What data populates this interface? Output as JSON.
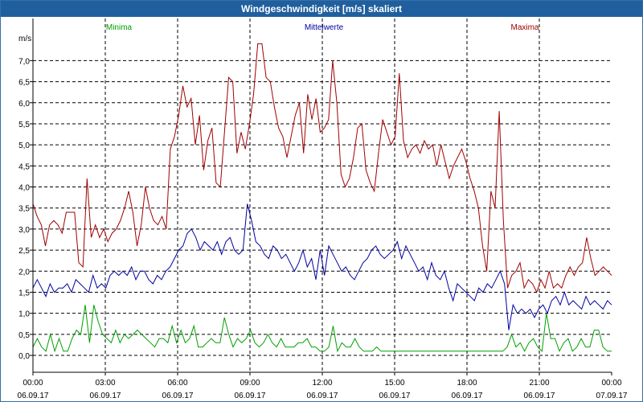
{
  "window": {
    "title": "Windgeschwindigkeit [m/s] skaliert"
  },
  "chart_data": {
    "type": "line",
    "title": "Windgeschwindigkeit [m/s] skaliert",
    "ylabel": "m/s",
    "ylim": [
      -0.4,
      8.0
    ],
    "xlim": [
      0,
      24
    ],
    "yticks": [
      "0,0",
      "0,5",
      "1,0",
      "1,5",
      "2,0",
      "2,5",
      "3,0",
      "3,5",
      "4,0",
      "4,5",
      "5,0",
      "5,5",
      "6,0",
      "6,5",
      "7,0"
    ],
    "xticks": [
      {
        "time": "00:00",
        "date": "06.09.17"
      },
      {
        "time": "03:00",
        "date": "06.09.17"
      },
      {
        "time": "06:00",
        "date": "06.09.17"
      },
      {
        "time": "09:00",
        "date": "06.09.17"
      },
      {
        "time": "12:00",
        "date": "06.09.17"
      },
      {
        "time": "15:00",
        "date": "06.09.17"
      },
      {
        "time": "18:00",
        "date": "06.09.17"
      },
      {
        "time": "21:00",
        "date": "06.09.17"
      },
      {
        "time": "00:00",
        "date": "07.09.17"
      }
    ],
    "grid": true,
    "series": [
      {
        "name": "Minima",
        "color": "#00a000",
        "values": [
          0.2,
          0.4,
          0.2,
          0.1,
          0.5,
          0.1,
          0.4,
          0.1,
          0.1,
          0.4,
          0.6,
          0.5,
          1.2,
          0.3,
          1.2,
          0.8,
          0.5,
          0.4,
          0.3,
          0.6,
          0.3,
          0.5,
          0.4,
          0.5,
          0.6,
          0.5,
          0.4,
          0.3,
          0.2,
          0.4,
          0.4,
          0.3,
          0.7,
          0.3,
          0.6,
          0.3,
          0.4,
          0.7,
          0.2,
          0.2,
          0.3,
          0.4,
          0.3,
          0.3,
          0.9,
          0.5,
          0.2,
          0.4,
          0.3,
          0.4,
          0.6,
          0.3,
          0.2,
          0.3,
          0.5,
          0.3,
          0.2,
          0.4,
          0.2,
          0.2,
          0.2,
          0.3,
          0.3,
          0.4,
          0.2,
          0.2,
          0.1,
          0.1,
          0.2,
          0.7,
          0.1,
          0.3,
          0.2,
          0.2,
          0.4,
          0.2,
          0.1,
          0.1,
          0.1,
          0.2,
          0.1,
          0.1,
          0.1,
          0.1,
          0.1,
          0.1,
          0.1,
          0.1,
          0.1,
          0.1,
          0.1,
          0.1,
          0.1,
          0.1,
          0.1,
          0.1,
          0.1,
          0.1,
          0.1,
          0.1,
          0.1,
          0.1,
          0.1,
          0.1,
          0.1,
          0.1,
          0.1,
          0.1,
          0.1,
          0.2,
          0.5,
          0.2,
          0.3,
          0.1,
          0.3,
          0.4,
          0.2,
          0.1,
          1.0,
          0.4,
          0.4,
          0.1,
          0.3,
          0.4,
          0.1,
          0.2,
          0.4,
          0.2,
          0.2,
          0.6,
          0.6,
          0.2,
          0.1,
          0.1
        ]
      },
      {
        "name": "Mittelwerte",
        "color": "#0000a0",
        "values": [
          1.6,
          1.8,
          1.6,
          1.4,
          1.7,
          1.5,
          1.6,
          1.6,
          1.7,
          1.5,
          1.8,
          1.7,
          1.6,
          1.5,
          1.9,
          1.6,
          1.7,
          1.6,
          1.9,
          2.0,
          1.9,
          2.0,
          1.9,
          2.1,
          1.8,
          2.0,
          2.0,
          1.8,
          1.7,
          1.9,
          1.8,
          2.0,
          2.1,
          2.3,
          2.5,
          2.6,
          2.9,
          3.0,
          2.8,
          2.5,
          2.7,
          2.6,
          2.5,
          2.7,
          2.4,
          2.7,
          2.8,
          2.5,
          2.4,
          2.5,
          3.6,
          3.2,
          2.7,
          2.6,
          2.4,
          2.3,
          2.6,
          2.5,
          2.3,
          2.4,
          2.2,
          2.0,
          2.2,
          2.5,
          2.1,
          2.3,
          1.8,
          2.5,
          1.9,
          2.6,
          2.4,
          2.2,
          2.0,
          2.1,
          1.9,
          1.8,
          2.0,
          2.2,
          2.3,
          2.5,
          2.6,
          2.4,
          2.3,
          2.4,
          2.5,
          2.7,
          2.3,
          2.6,
          2.4,
          2.2,
          2.0,
          2.1,
          1.8,
          2.2,
          1.9,
          1.8,
          2.0,
          1.6,
          1.3,
          1.7,
          1.6,
          1.5,
          1.4,
          1.3,
          1.6,
          1.5,
          1.7,
          1.6,
          1.8,
          2.0,
          1.7,
          0.6,
          1.2,
          1.0,
          1.1,
          1.0,
          1.1,
          0.9,
          1.1,
          1.2,
          1.0,
          1.3,
          1.4,
          1.2,
          1.5,
          1.2,
          1.3,
          1.2,
          1.1,
          1.4,
          1.2,
          1.3,
          1.2,
          1.1,
          1.3,
          1.2
        ]
      },
      {
        "name": "Maxima",
        "color": "#a00000",
        "values": [
          3.6,
          3.3,
          3.1,
          2.6,
          3.1,
          3.2,
          3.1,
          2.9,
          3.4,
          3.4,
          3.4,
          2.2,
          2.1,
          4.2,
          2.8,
          3.1,
          2.8,
          3.0,
          2.7,
          2.9,
          3.0,
          3.2,
          3.5,
          3.9,
          3.4,
          2.6,
          3.1,
          4.0,
          3.5,
          3.2,
          3.1,
          3.3,
          3.0,
          4.9,
          5.2,
          5.7,
          6.4,
          5.9,
          6.1,
          5.0,
          5.7,
          4.4,
          5.1,
          5.4,
          4.1,
          4.0,
          5.3,
          6.6,
          6.5,
          4.8,
          5.3,
          4.9,
          5.5,
          6.2,
          7.4,
          7.4,
          6.6,
          6.5,
          5.9,
          5.4,
          5.2,
          4.7,
          5.2,
          5.7,
          6.0,
          4.8,
          6.2,
          5.6,
          6.1,
          5.3,
          5.4,
          5.6,
          7.0,
          6.0,
          4.3,
          4.0,
          4.2,
          4.7,
          5.4,
          5.5,
          4.4,
          4.1,
          3.9,
          4.8,
          5.6,
          5.3,
          5.0,
          5.2,
          6.7,
          5.1,
          4.7,
          4.9,
          5.0,
          4.8,
          5.1,
          4.9,
          5.0,
          4.5,
          5.0,
          4.6,
          4.2,
          4.5,
          4.7,
          4.9,
          4.6,
          4.2,
          3.9,
          3.5,
          2.6,
          2.0,
          3.9,
          3.5,
          5.8,
          3.2,
          1.6,
          1.9,
          2.0,
          2.2,
          1.6,
          1.8,
          1.7,
          1.5,
          1.8,
          1.6,
          2.0,
          1.6,
          1.7,
          1.6,
          1.9,
          2.1,
          1.9,
          2.1,
          2.2,
          2.8,
          2.3,
          1.9,
          2.0,
          2.1,
          2.0,
          1.9
        ]
      }
    ],
    "legend": "top"
  }
}
